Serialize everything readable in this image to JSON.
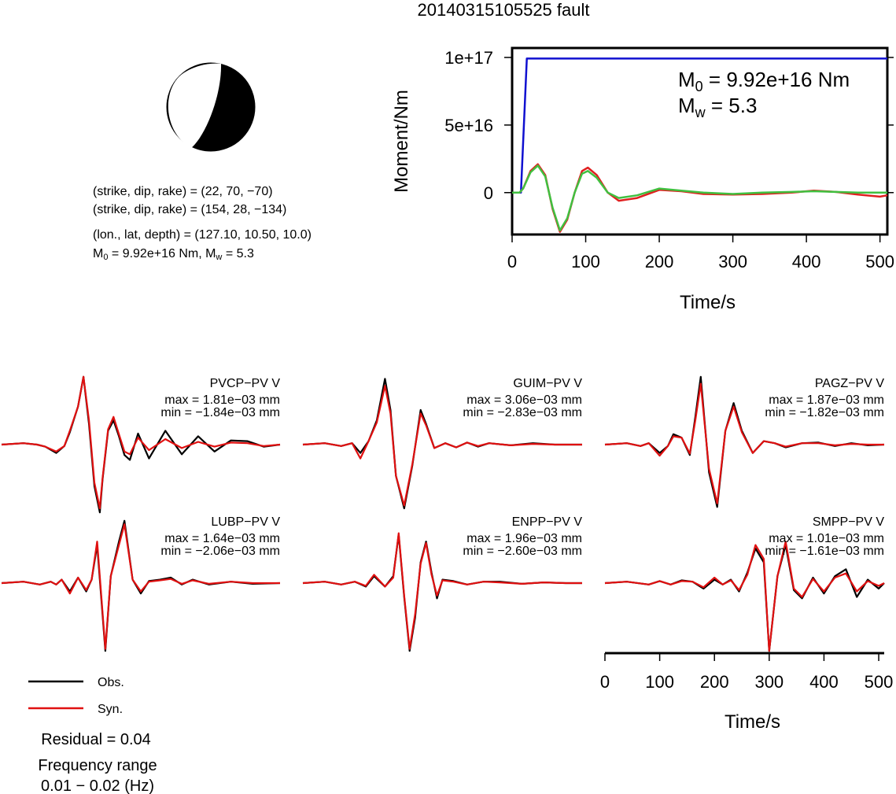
{
  "title": "20140315105525 fault",
  "beachball": {
    "nodal1": "(strike, dip, rake) = (22, 70, −70)",
    "nodal2": "(strike, dip, rake) = (154, 28, −134)",
    "location": "(lon., lat, depth) = (127.10, 10.50, 10.0)",
    "moment_prefix": "M",
    "moment_sub": "0",
    "moment_value": " = 9.92e+16 Nm, M",
    "mw_sub": "w",
    "mw_value": " = 5.3"
  },
  "legend": {
    "obs_label": "Obs.",
    "syn_label": "Syn.",
    "residual": "Residual = 0.04",
    "freq_line1": "Frequency range",
    "freq_line2": "0.01 − 0.02 (Hz)"
  },
  "colors": {
    "moment": "#1010d0",
    "source_red": "#e02020",
    "source_green": "#40c040",
    "obs": "#000000",
    "syn": "#e01010"
  },
  "chart_data": [
    {
      "type": "line",
      "xlabel": "Time/s",
      "ylabel": "Moment/Nm",
      "xlim": [
        0,
        510
      ],
      "ylim": [
        -3.1e+16,
        1.07e+17
      ],
      "xticks": [
        0,
        100,
        200,
        300,
        400,
        500
      ],
      "xtick_labels": [
        "0",
        "100",
        "200",
        "300",
        "400",
        "500"
      ],
      "yticks": [
        0,
        5e+16,
        1e+17
      ],
      "ytick_labels": [
        "0",
        "5e+16",
        "1e+17"
      ],
      "annotation": {
        "m0_prefix": "M",
        "m0_sub": "0",
        "m0_value": " = 9.92e+16 Nm",
        "mw_prefix": "M",
        "mw_sub": "w",
        "mw_value": " = 5.3"
      },
      "series": [
        {
          "role": "cumulative moment",
          "x": [
            0,
            12,
            20,
            510
          ],
          "y": [
            0,
            0,
            9.92e+16,
            9.92e+16
          ]
        },
        {
          "role": "moment rate (red)",
          "x": [
            0,
            10,
            15,
            25,
            35,
            45,
            55,
            65,
            75,
            85,
            95,
            103,
            115,
            130,
            145,
            170,
            200,
            230,
            260,
            300,
            340,
            380,
            410,
            440,
            470,
            500,
            510
          ],
          "y": [
            0,
            0,
            3000000000000000.0,
            1.6e+16,
            2.1e+16,
            1.3e+16,
            -1.2e+16,
            -2.9e+16,
            -2e+16,
            0,
            1.6e+16,
            1.85e+16,
            1.3e+16,
            0,
            -6000000000000000.0,
            -4000000000000000.0,
            2000000000000000.0,
            1000000000000000.0,
            -1000000000000000.0,
            -1500000000000000.0,
            -1000000000000000.0,
            0,
            1500000000000000.0,
            500000000000000.0,
            -1500000000000000.0,
            -3000000000000000.0,
            -2000000000000000.0
          ]
        },
        {
          "role": "moment rate (green)",
          "x": [
            0,
            10,
            15,
            25,
            35,
            45,
            55,
            65,
            75,
            85,
            95,
            103,
            115,
            130,
            145,
            170,
            200,
            230,
            260,
            300,
            340,
            380,
            410,
            440,
            470,
            500,
            510
          ],
          "y": [
            0,
            0,
            3000000000000000.0,
            1.5e+16,
            2e+16,
            1.2e+16,
            -1.1e+16,
            -2.8e+16,
            -1.9e+16,
            0,
            1.4e+16,
            1.6e+16,
            1.1e+16,
            0,
            -4000000000000000.0,
            -2000000000000000.0,
            3000000000000000.0,
            1500000000000000.0,
            0,
            -1000000000000000.0,
            0,
            500000000000000.0,
            1000000000000000.0,
            500000000000000.0,
            0,
            0,
            0
          ]
        }
      ]
    },
    {
      "type": "line",
      "xlabel": "Time/s",
      "xlim": [
        0,
        510
      ],
      "xticks": [
        0,
        100,
        200,
        300,
        400,
        500
      ],
      "xtick_labels": [
        "0",
        "100",
        "200",
        "300",
        "400",
        "500"
      ],
      "amplitude_units": "normalized",
      "traces": [
        {
          "station": "PVCP−PV V",
          "max": "max = 1.81e−03 mm",
          "min": "min = −1.84e−03 mm",
          "obs": {
            "x": [
              0,
              40,
              65,
              80,
              100,
              115,
              125,
              140,
              150,
              160,
              170,
              180,
              185,
              195,
              205,
              215,
              225,
              235,
              250,
              270,
              300,
              330,
              360,
              390,
              420,
              450,
              480,
              510
            ],
            "y": [
              0,
              0.02,
              0,
              -0.03,
              -0.12,
              -0.02,
              0.18,
              0.55,
              0.98,
              0.3,
              -0.6,
              -0.98,
              -0.5,
              0.2,
              0.35,
              0.12,
              -0.15,
              -0.22,
              0.16,
              -0.2,
              0.2,
              -0.14,
              0.12,
              -0.1,
              0.06,
              0.05,
              -0.03,
              0
            ]
          },
          "syn": {
            "x": [
              0,
              40,
              65,
              80,
              100,
              115,
              125,
              140,
              150,
              160,
              170,
              180,
              185,
              195,
              205,
              215,
              225,
              235,
              250,
              270,
              300,
              330,
              360,
              390,
              420,
              450,
              480,
              510
            ],
            "y": [
              0,
              0.02,
              0,
              -0.03,
              -0.1,
              -0.02,
              0.2,
              0.55,
              0.98,
              0.35,
              -0.55,
              -0.92,
              -0.48,
              0.22,
              0.4,
              0.15,
              -0.1,
              -0.14,
              0.1,
              -0.08,
              0.08,
              -0.05,
              0.04,
              -0.03,
              0.03,
              0.02,
              -0.02,
              0
            ]
          }
        },
        {
          "station": "GUIM−PV V",
          "max": "max = 3.06e−03 mm",
          "min": "min = −2.83e−03 mm",
          "obs": {
            "x": [
              0,
              40,
              70,
              90,
              105,
              120,
              135,
              150,
              160,
              170,
              185,
              200,
              215,
              225,
              240,
              260,
              280,
              300,
              320,
              340,
              380,
              420,
              460,
              510
            ],
            "y": [
              0,
              0.02,
              -0.02,
              0.02,
              -0.12,
              0.05,
              0.35,
              0.95,
              0.5,
              -0.45,
              -0.92,
              -0.3,
              0.5,
              0.3,
              -0.05,
              0.02,
              -0.04,
              0.03,
              -0.03,
              0.02,
              -0.01,
              0.02,
              0,
              0
            ]
          },
          "syn": {
            "x": [
              0,
              40,
              70,
              90,
              105,
              120,
              135,
              150,
              160,
              170,
              185,
              200,
              215,
              225,
              240,
              260,
              280,
              300,
              320,
              340,
              380,
              420,
              460,
              510
            ],
            "y": [
              0,
              0.02,
              -0.02,
              0.02,
              -0.2,
              0.05,
              0.32,
              0.85,
              0.45,
              -0.45,
              -0.88,
              -0.28,
              0.45,
              0.28,
              -0.05,
              0.02,
              -0.04,
              0.03,
              -0.02,
              0.02,
              -0.01,
              0.01,
              0,
              0
            ]
          }
        },
        {
          "station": "PAGZ−PV V",
          "max": "max = 1.87e−03 mm",
          "min": "min = −1.82e−03 mm",
          "obs": {
            "x": [
              0,
              40,
              65,
              80,
              100,
              115,
              125,
              140,
              155,
              165,
              175,
              190,
              205,
              220,
              235,
              250,
              270,
              290,
              310,
              330,
              360,
              390,
              420,
              450,
              480,
              510
            ],
            "y": [
              0,
              0.02,
              -0.02,
              0.02,
              -0.12,
              -0.02,
              0.15,
              0.1,
              -0.15,
              0.4,
              0.98,
              -0.4,
              -0.9,
              0.2,
              0.6,
              0.2,
              -0.12,
              0.05,
              0.02,
              -0.04,
              0.02,
              0.03,
              -0.02,
              0.02,
              -0.01,
              0
            ]
          },
          "syn": {
            "x": [
              0,
              40,
              65,
              80,
              100,
              115,
              125,
              140,
              155,
              165,
              175,
              190,
              205,
              220,
              235,
              250,
              270,
              290,
              310,
              330,
              360,
              390,
              420,
              450,
              480,
              510
            ],
            "y": [
              0,
              0.02,
              -0.02,
              0.02,
              -0.16,
              -0.02,
              0.12,
              0.1,
              -0.13,
              0.35,
              0.88,
              -0.35,
              -0.85,
              0.2,
              0.55,
              0.18,
              -0.12,
              0.05,
              0.02,
              -0.03,
              0.02,
              0.02,
              -0.01,
              0.01,
              0,
              0
            ]
          }
        },
        {
          "station": "LUBP−PV V",
          "max": "max = 1.64e−03 mm",
          "min": "min = −2.06e−03 mm",
          "obs": {
            "x": [
              0,
              40,
              70,
              90,
              100,
              110,
              125,
              140,
              155,
              165,
              175,
              190,
              200,
              215,
              225,
              240,
              255,
              270,
              290,
              310,
              330,
              350,
              380,
              420,
              460,
              510
            ],
            "y": [
              0,
              0.02,
              -0.02,
              0.02,
              -0.02,
              0.05,
              -0.12,
              0.08,
              -0.12,
              0.05,
              0.55,
              -0.98,
              0.1,
              0.6,
              0.9,
              0.05,
              -0.15,
              0.03,
              0.05,
              0.08,
              -0.02,
              0.05,
              -0.02,
              0.02,
              -0.01,
              0
            ]
          },
          "syn": {
            "x": [
              0,
              40,
              70,
              90,
              100,
              110,
              125,
              140,
              155,
              165,
              175,
              190,
              200,
              215,
              225,
              240,
              255,
              270,
              290,
              310,
              330,
              350,
              380,
              420,
              460,
              510
            ],
            "y": [
              0,
              0.02,
              -0.02,
              0.02,
              -0.02,
              0.05,
              -0.15,
              0.08,
              -0.1,
              0.05,
              0.6,
              -0.95,
              0.1,
              0.55,
              0.85,
              0.05,
              -0.12,
              0.02,
              0.04,
              0.06,
              -0.01,
              0.04,
              -0.01,
              0.02,
              0,
              0
            ]
          }
        },
        {
          "station": "ENPP−PV V",
          "max": "max = 1.96e−03 mm",
          "min": "min = −2.60e−03 mm",
          "obs": {
            "x": [
              0,
              40,
              70,
              95,
              115,
              130,
              150,
              165,
              175,
              185,
              195,
              205,
              215,
              225,
              235,
              245,
              255,
              275,
              300,
              330,
              360,
              400,
              440,
              480,
              510
            ],
            "y": [
              0,
              0.02,
              -0.02,
              0.02,
              -0.05,
              0.1,
              -0.05,
              0.1,
              0.7,
              -0.2,
              -0.98,
              -0.5,
              0.3,
              0.6,
              0.15,
              -0.22,
              0.05,
              0.03,
              -0.02,
              0.02,
              0.02,
              -0.01,
              0.01,
              0,
              0
            ]
          },
          "syn": {
            "x": [
              0,
              40,
              70,
              95,
              115,
              130,
              150,
              165,
              175,
              185,
              195,
              205,
              215,
              225,
              235,
              245,
              255,
              275,
              300,
              330,
              360,
              400,
              440,
              480,
              510
            ],
            "y": [
              0,
              0.02,
              -0.02,
              0.02,
              -0.04,
              0.12,
              -0.05,
              0.08,
              0.72,
              -0.18,
              -0.95,
              -0.45,
              0.28,
              0.58,
              0.12,
              -0.18,
              0.04,
              0.02,
              -0.02,
              0.02,
              0.01,
              -0.01,
              0.01,
              0,
              0
            ]
          }
        },
        {
          "station": "SMPP−PV V",
          "max": "max = 1.01e−03 mm",
          "min": "min = −1.61e−03 mm",
          "obs": {
            "x": [
              0,
              40,
              80,
              100,
              120,
              140,
              160,
              180,
              200,
              215,
              230,
              245,
              260,
              275,
              290,
              300,
              315,
              330,
              345,
              360,
              380,
              400,
              420,
              440,
              460,
              480,
              500,
              510
            ],
            "y": [
              0,
              0.02,
              -0.02,
              0.03,
              -0.02,
              0.04,
              0.02,
              -0.08,
              0.05,
              -0.02,
              0.05,
              -0.12,
              0.15,
              0.5,
              0.3,
              -0.98,
              0.1,
              0.55,
              -0.1,
              -0.22,
              0.08,
              -0.15,
              0.1,
              0.2,
              -0.2,
              0.05,
              -0.08,
              0
            ]
          },
          "syn": {
            "x": [
              0,
              40,
              80,
              100,
              120,
              140,
              160,
              180,
              200,
              215,
              230,
              245,
              260,
              275,
              290,
              300,
              315,
              330,
              345,
              360,
              380,
              400,
              420,
              440,
              460,
              480,
              500,
              510
            ],
            "y": [
              0,
              0.02,
              -0.02,
              0.03,
              -0.02,
              0.03,
              0.02,
              -0.06,
              0.08,
              -0.02,
              0.04,
              -0.1,
              0.12,
              0.55,
              0.35,
              -0.98,
              0.1,
              0.6,
              -0.08,
              -0.2,
              0.06,
              -0.12,
              0.08,
              0.14,
              -0.12,
              0.03,
              -0.04,
              0
            ]
          }
        }
      ]
    }
  ]
}
